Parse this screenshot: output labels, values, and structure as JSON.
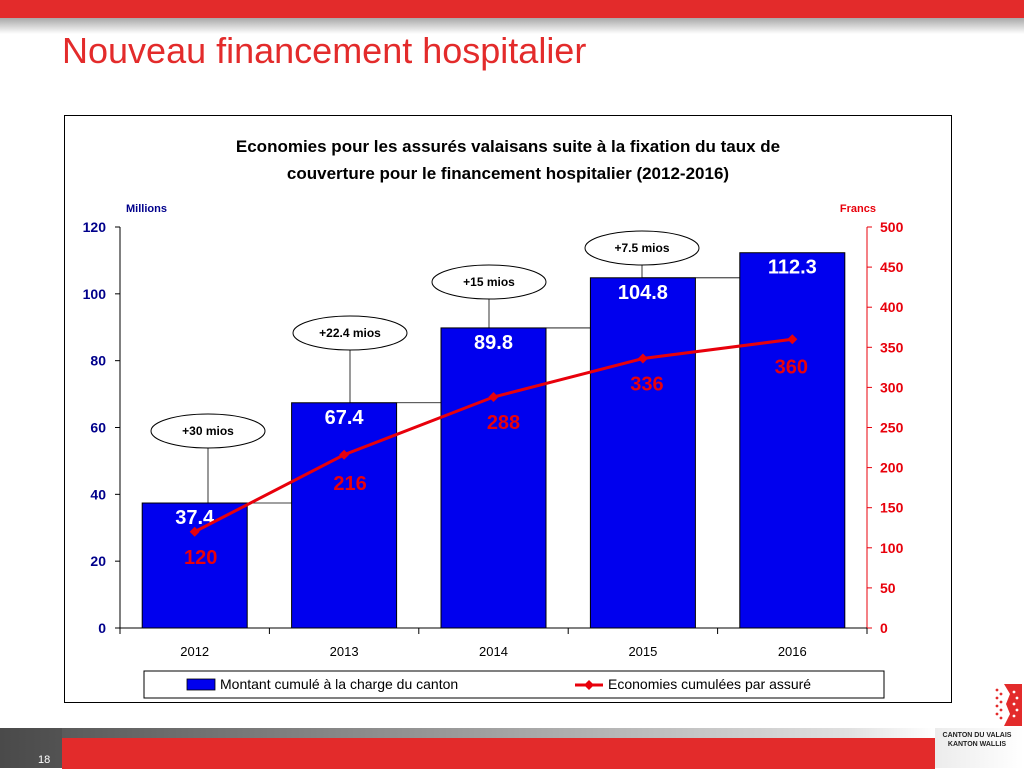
{
  "slide": {
    "title": "Nouveau financement hospitalier",
    "page_number": "18",
    "logo_line1": "CANTON DU VALAIS",
    "logo_line2": "KANTON WALLIS"
  },
  "colors": {
    "brand_red": "#e32b2b",
    "bar_blue": "#0000ee",
    "axis_left": "#00008b",
    "axis_right": "#e8000b",
    "line_red": "#e8000b"
  },
  "chart_data": {
    "type": "bar",
    "title_line1": "Economies pour les assurés valaisans suite à la fixation du taux de",
    "title_line2": "couverture pour le financement hospitalier (2012-2016)",
    "categories": [
      "2012",
      "2013",
      "2014",
      "2015",
      "2016"
    ],
    "y_left": {
      "label": "Millions",
      "lim": [
        0,
        120
      ],
      "ticks": [
        0,
        20,
        40,
        60,
        80,
        100,
        120
      ]
    },
    "y_right": {
      "label": "Francs",
      "lim": [
        0,
        500
      ],
      "ticks": [
        0,
        50,
        100,
        150,
        200,
        250,
        300,
        350,
        400,
        450,
        500
      ]
    },
    "series": [
      {
        "name": "Montant cumulé à la charge du canton",
        "kind": "bar",
        "axis": "left",
        "values": [
          37.4,
          67.4,
          89.8,
          104.8,
          112.3
        ],
        "labels": [
          "37.4",
          "67.4",
          "89.8",
          "104.8",
          "112.3"
        ]
      },
      {
        "name": "Economies cumulées par assuré",
        "kind": "line",
        "axis": "right",
        "values": [
          120,
          216,
          288,
          336,
          360
        ],
        "labels": [
          "120",
          "216",
          "288",
          "336",
          "360"
        ]
      }
    ],
    "annotations": [
      "+30 mios",
      "+22.4 mios",
      "+15 mios",
      "+7.5 mios"
    ],
    "legend_position": "bottom",
    "grid": false
  }
}
